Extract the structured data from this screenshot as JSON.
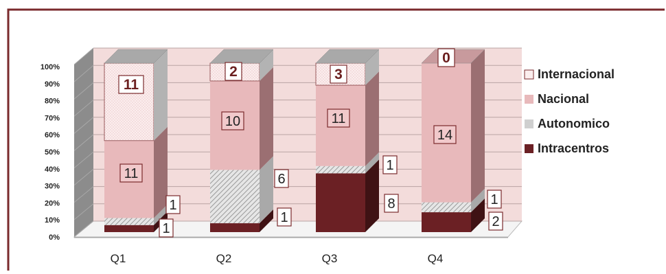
{
  "colors": {
    "intracentros": "#6b2024",
    "autonomico": "#cfcfcf",
    "nacional": "#e8b9bb",
    "internacional": "#fbeeee",
    "wall": "#f3dcdb",
    "frame": "#7a2a2c"
  },
  "chart_data": {
    "type": "bar",
    "stacked": true,
    "percent_stacked": true,
    "categories": [
      "Q1",
      "Q2",
      "Q3",
      "Q4"
    ],
    "y_ticks": [
      "0%",
      "10%",
      "20%",
      "30%",
      "40%",
      "50%",
      "60%",
      "70%",
      "80%",
      "90%",
      "100%"
    ],
    "ylim": [
      0,
      100
    ],
    "legend_position": "right",
    "grid": true,
    "series": [
      {
        "name": "Intracentros",
        "color_key": "intracentros",
        "values": [
          1,
          1,
          8,
          2
        ],
        "labels": [
          "1",
          "1",
          "8",
          "2"
        ]
      },
      {
        "name": "Autonomico",
        "color_key": "autonomico",
        "values": [
          1,
          6,
          1,
          1
        ],
        "labels": [
          "1",
          "6",
          "1",
          "1"
        ]
      },
      {
        "name": "Nacional",
        "color_key": "nacional",
        "values": [
          11,
          10,
          11,
          14
        ],
        "labels": [
          "11",
          "10",
          "11",
          "14"
        ]
      },
      {
        "name": "Internacional",
        "color_key": "internacional",
        "values": [
          11,
          2,
          3,
          0
        ],
        "labels": [
          "11",
          "2",
          "3",
          "0"
        ]
      }
    ],
    "legend": [
      "Internacional",
      "Nacional",
      "Autonomico",
      "Intracentros"
    ]
  }
}
